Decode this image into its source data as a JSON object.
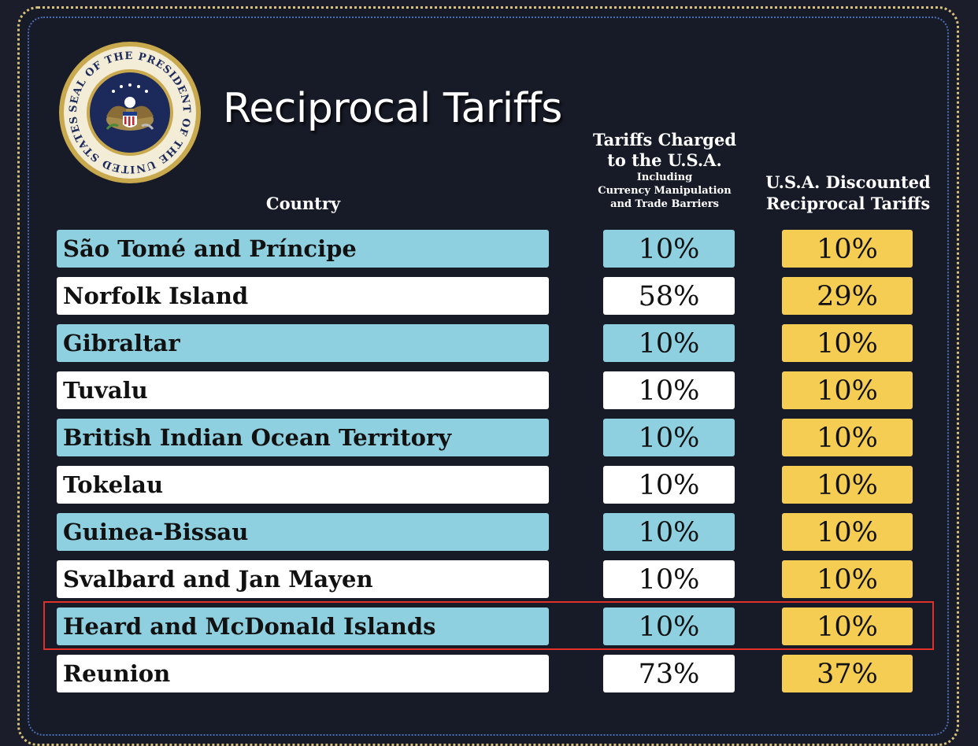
{
  "title": "Reciprocal Tariffs",
  "seal": {
    "text": "SEAL OF THE PRESIDENT OF THE UNITED STATES"
  },
  "headers": {
    "country": "Country",
    "charged_line1": "Tariffs Charged",
    "charged_line2": "to the U.S.A.",
    "charged_line3": "Including",
    "charged_line4": "Currency Manipulation",
    "charged_line5": "and Trade Barriers",
    "discounted_line1": "U.S.A. Discounted",
    "discounted_line2": "Reciprocal Tariffs"
  },
  "colors": {
    "row_blue": "#8fd0e0",
    "row_white": "#ffffff",
    "discount_yellow": "#f5cd52",
    "highlight_border": "#e0302a"
  },
  "rows": [
    {
      "country": "São Tomé and Príncipe",
      "charged": "10%",
      "discounted": "10%",
      "style": "blue"
    },
    {
      "country": "Norfolk Island",
      "charged": "58%",
      "discounted": "29%",
      "style": "white"
    },
    {
      "country": "Gibraltar",
      "charged": "10%",
      "discounted": "10%",
      "style": "blue"
    },
    {
      "country": "Tuvalu",
      "charged": "10%",
      "discounted": "10%",
      "style": "white"
    },
    {
      "country": "British Indian Ocean Territory",
      "charged": "10%",
      "discounted": "10%",
      "style": "blue"
    },
    {
      "country": "Tokelau",
      "charged": "10%",
      "discounted": "10%",
      "style": "white"
    },
    {
      "country": "Guinea-Bissau",
      "charged": "10%",
      "discounted": "10%",
      "style": "blue"
    },
    {
      "country": "Svalbard and Jan Mayen",
      "charged": "10%",
      "discounted": "10%",
      "style": "white"
    },
    {
      "country": "Heard and McDonald Islands",
      "charged": "10%",
      "discounted": "10%",
      "style": "blue",
      "highlighted": true
    },
    {
      "country": "Reunion",
      "charged": "73%",
      "discounted": "37%",
      "style": "white"
    }
  ]
}
